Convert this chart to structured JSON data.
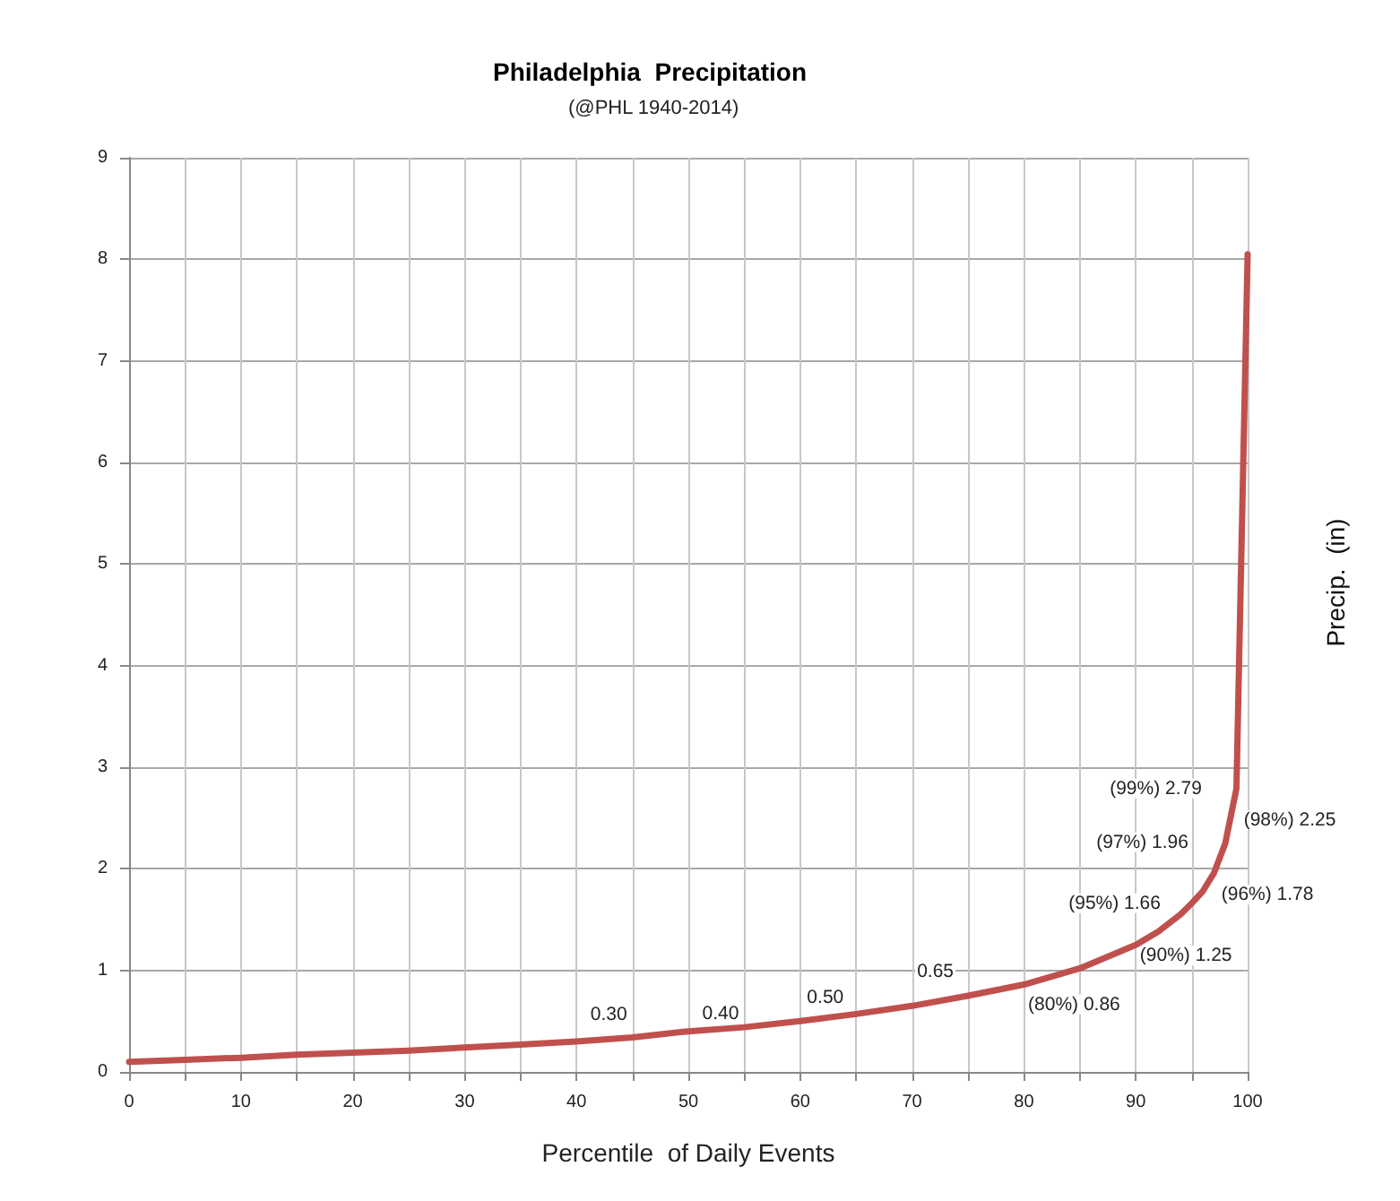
{
  "chart_data": {
    "type": "line",
    "title": "Philadelphia  Precipitation",
    "subtitle": "(@PHL 1940-2014)",
    "xlabel": "Percentile  of Daily Events",
    "ylabel": "Precip.  (in)",
    "x": [
      0,
      5,
      10,
      15,
      20,
      25,
      30,
      35,
      40,
      45,
      50,
      55,
      60,
      65,
      70,
      75,
      80,
      85,
      90,
      92,
      94,
      95,
      96,
      97,
      98,
      99,
      100
    ],
    "series": [
      {
        "color": "#c0504d",
        "values": [
          0.1,
          0.12,
          0.14,
          0.17,
          0.19,
          0.21,
          0.24,
          0.27,
          0.3,
          0.34,
          0.4,
          0.44,
          0.5,
          0.57,
          0.65,
          0.75,
          0.86,
          1.02,
          1.25,
          1.38,
          1.55,
          1.66,
          1.78,
          1.96,
          2.25,
          2.79,
          8.05
        ]
      }
    ],
    "xlim": [
      0,
      100
    ],
    "xticks": [
      0,
      {
        "value": 5,
        "label": null
      },
      10,
      {
        "value": 15,
        "label": null
      },
      20,
      {
        "value": 25,
        "label": null
      },
      30,
      {
        "value": 35,
        "label": null
      },
      40,
      {
        "value": 45,
        "label": null
      },
      50,
      {
        "value": 55,
        "label": null
      },
      60,
      {
        "value": 65,
        "label": null
      },
      70,
      {
        "value": 75,
        "label": null
      },
      80,
      {
        "value": 85,
        "label": null
      },
      90,
      {
        "value": 95,
        "label": null
      },
      100
    ],
    "ylim": [
      0,
      9
    ],
    "yticks": [
      0,
      1,
      2,
      3,
      4,
      5,
      6,
      7,
      8,
      9
    ],
    "grid": true,
    "marker": "none",
    "line_style": "solid",
    "annotations": [
      {
        "text": "0.30",
        "x": 40,
        "y": 0.3
      },
      {
        "text": "0.40",
        "x": 50,
        "y": 0.4
      },
      {
        "text": "0.50",
        "x": 60,
        "y": 0.5
      },
      {
        "text": "0.65",
        "x": 70,
        "y": 0.65
      },
      {
        "text": "(80%) 0.86",
        "x": 80,
        "y": 0.86
      },
      {
        "text": "(90%) 1.25",
        "x": 90,
        "y": 1.25
      },
      {
        "text": "(95%) 1.66",
        "x": 95,
        "y": 1.66
      },
      {
        "text": "(96%) 1.78",
        "x": 96,
        "y": 1.78
      },
      {
        "text": "(97%) 1.96",
        "x": 97,
        "y": 1.96
      },
      {
        "text": "(98%) 2.25",
        "x": 98,
        "y": 2.25
      },
      {
        "text": "(99%) 2.79",
        "x": 99,
        "y": 2.79
      }
    ]
  }
}
